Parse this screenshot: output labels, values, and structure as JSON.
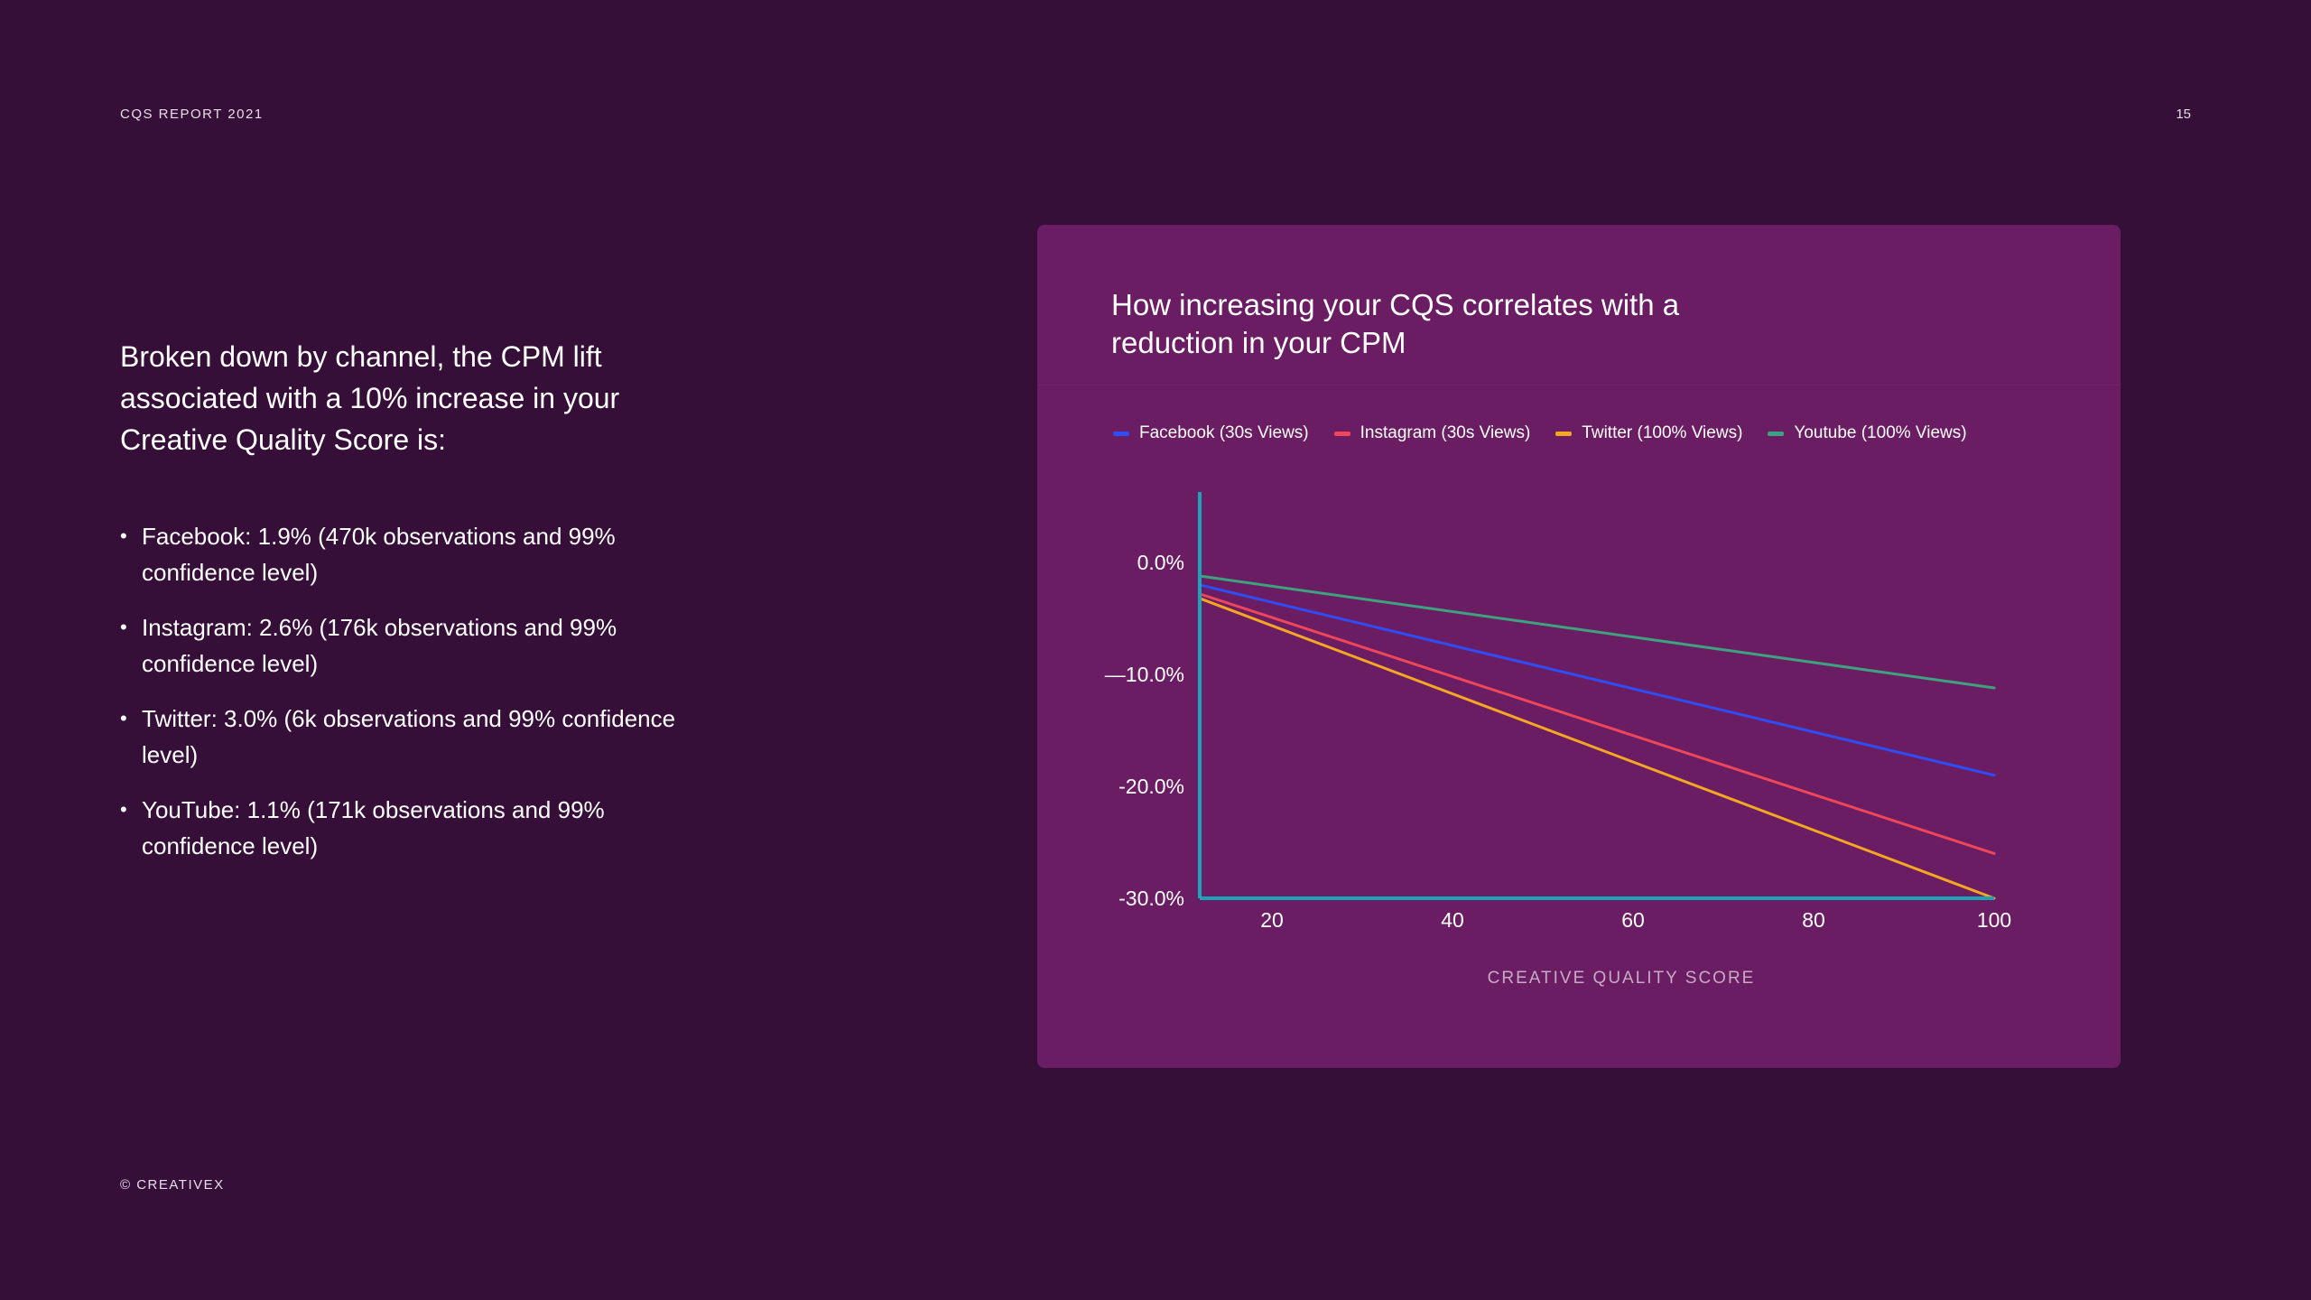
{
  "header": {
    "report_label": "CQS REPORT 2021",
    "page_number": "15"
  },
  "footer": {
    "copyright": "© CREATIVEX"
  },
  "intro": {
    "text": "Broken down by channel, the CPM lift associated with a 10% increase in your Creative Quality Score is:"
  },
  "bullets": [
    "Facebook: 1.9% (470k observations and 99% confidence level)",
    "Instagram: 2.6% (176k observations and 99% confidence level)",
    "Twitter: 3.0% (6k observations and 99% confidence level)",
    "YouTube: 1.1% (171k observations and 99% confidence level)"
  ],
  "colors": {
    "background": "#360f39",
    "card": "#6a1d63",
    "axis": "#1ba3b8",
    "facebook": "#2f4df5",
    "instagram": "#f0465a",
    "twitter": "#f5a623",
    "youtube": "#3ea27f",
    "xlabel": "#c8a9c6"
  },
  "chart_data": {
    "type": "line",
    "title": "How increasing your CQS correlates with a reduction in your CPM",
    "xlabel": "CREATIVE QUALITY SCORE",
    "ylabel": "",
    "xlim": [
      12,
      100
    ],
    "ylim": [
      -30,
      5.5
    ],
    "x_ticks": [
      20,
      40,
      60,
      80,
      100
    ],
    "x_tick_labels": [
      "20",
      "40",
      "60",
      "80",
      "100"
    ],
    "y_ticks": [
      0,
      -10,
      -20,
      -30
    ],
    "y_tick_labels": [
      "0.0%",
      "—10.0%",
      "-20.0%",
      "-30.0%"
    ],
    "legend_position": "top",
    "grid": false,
    "series": [
      {
        "name": "Facebook (30s Views)",
        "color_key": "facebook",
        "x": [
          12,
          100
        ],
        "y": [
          -2,
          -19
        ]
      },
      {
        "name": "Instagram (30s Views)",
        "color_key": "instagram",
        "x": [
          12,
          100
        ],
        "y": [
          -2.8,
          -26
        ]
      },
      {
        "name": "Twitter (100% Views)",
        "color_key": "twitter",
        "x": [
          12,
          100
        ],
        "y": [
          -3.2,
          -30
        ]
      },
      {
        "name": "Youtube (100% Views)",
        "color_key": "youtube",
        "x": [
          12,
          100
        ],
        "y": [
          -1.2,
          -11.2
        ]
      }
    ]
  }
}
